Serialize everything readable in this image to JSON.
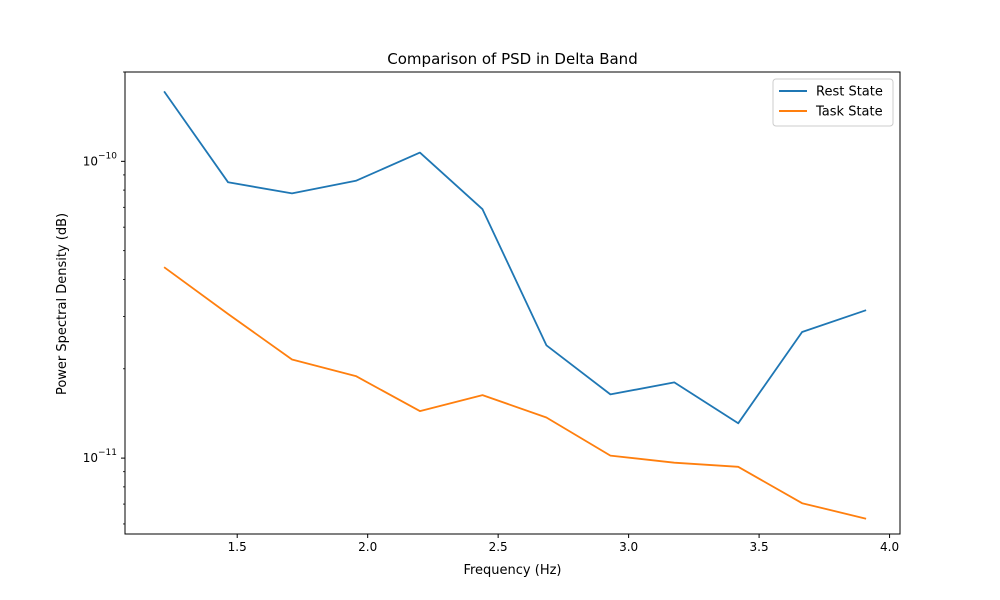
{
  "chart_data": {
    "type": "line",
    "title": "Comparison of PSD in Delta Band",
    "xlabel": "Frequency (Hz)",
    "ylabel": "Power Spectral Density (dB)",
    "x": [
      1.22,
      1.465,
      1.71,
      1.955,
      2.2,
      2.44,
      2.685,
      2.93,
      3.175,
      3.42,
      3.665,
      3.91
    ],
    "series": [
      {
        "name": "Rest State",
        "color": "#1f77b4",
        "values": [
          1.72e-10,
          8.5e-11,
          7.8e-11,
          8.6e-11,
          1.07e-10,
          6.9e-11,
          2.4e-11,
          1.64e-11,
          1.8e-11,
          1.31e-11,
          2.66e-11,
          3.15e-11
        ]
      },
      {
        "name": "Task State",
        "color": "#ff7f0e",
        "values": [
          4.4e-11,
          3.06e-11,
          2.15e-11,
          1.89e-11,
          1.44e-11,
          1.63e-11,
          1.37e-11,
          1.02e-11,
          9.65e-12,
          9.35e-12,
          7.05e-12,
          6.25e-12
        ]
      }
    ],
    "xlim": [
      1.07,
      4.04
    ],
    "ylim": [
      5.55e-12,
      2e-10
    ],
    "yscale": "log",
    "xticks": [
      1.5,
      2.0,
      2.5,
      3.0,
      3.5,
      4.0
    ],
    "xtick_labels": [
      "1.5",
      "2.0",
      "2.5",
      "3.0",
      "3.5",
      "4.0"
    ],
    "yticks_major": [
      1e-11,
      1e-10
    ],
    "ytick_labels_major": [
      {
        "base": "10",
        "exp": "−11"
      },
      {
        "base": "10",
        "exp": "−10"
      }
    ],
    "legend": "top-right",
    "grid": false
  }
}
